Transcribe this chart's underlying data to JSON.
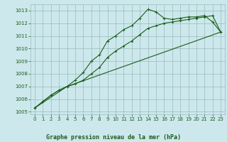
{
  "title": "Graphe pression niveau de la mer (hPa)",
  "background_color": "#cce8ec",
  "grid_color": "#99bbbb",
  "line_color": "#1a5c1a",
  "xlim": [
    -0.5,
    23.5
  ],
  "ylim": [
    1004.8,
    1013.5
  ],
  "yticks": [
    1005,
    1006,
    1007,
    1008,
    1009,
    1010,
    1011,
    1012,
    1013
  ],
  "xticks": [
    0,
    1,
    2,
    3,
    4,
    5,
    6,
    7,
    8,
    9,
    10,
    11,
    12,
    13,
    14,
    15,
    16,
    17,
    18,
    19,
    20,
    21,
    22,
    23
  ],
  "series1_x": [
    0,
    1,
    2,
    3,
    4,
    5,
    6,
    7,
    8,
    9,
    10,
    11,
    12,
    13,
    14,
    15,
    16,
    17,
    18,
    19,
    20,
    21,
    22,
    23
  ],
  "series1_y": [
    1005.3,
    1005.8,
    1006.3,
    1006.7,
    1007.0,
    1007.5,
    1008.1,
    1009.0,
    1009.5,
    1010.6,
    1011.0,
    1011.5,
    1011.8,
    1012.4,
    1013.1,
    1012.9,
    1012.4,
    1012.3,
    1012.4,
    1012.5,
    1012.5,
    1012.6,
    1012.1,
    1011.3
  ],
  "series2_x": [
    0,
    1,
    2,
    3,
    4,
    5,
    6,
    7,
    8,
    9,
    10,
    11,
    12,
    13,
    14,
    15,
    16,
    17,
    18,
    19,
    20,
    21,
    22,
    23
  ],
  "series2_y": [
    1005.3,
    1005.8,
    1006.3,
    1006.7,
    1007.0,
    1007.2,
    1007.5,
    1008.0,
    1008.5,
    1009.3,
    1009.8,
    1010.2,
    1010.6,
    1011.1,
    1011.6,
    1011.8,
    1012.0,
    1012.1,
    1012.2,
    1012.3,
    1012.4,
    1012.5,
    1012.6,
    1011.3
  ],
  "series3_x": [
    0,
    4,
    23
  ],
  "series3_y": [
    1005.3,
    1007.0,
    1011.3
  ],
  "tick_fontsize": 5,
  "label_fontsize": 6,
  "linewidth": 0.8,
  "marker_size": 2.0
}
